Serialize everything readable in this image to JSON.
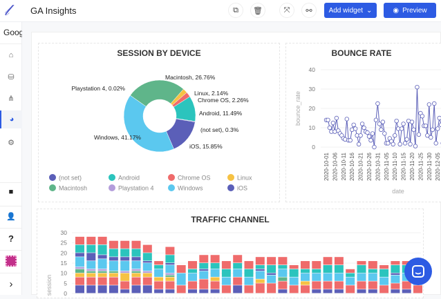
{
  "header": {
    "logo": "𝓁",
    "title": "GA Insights",
    "add_widget": "Add widget",
    "preview": "Preview",
    "icons": [
      "copy-icon",
      "trash-icon",
      "fullscreen-icon",
      "unlink-icon"
    ]
  },
  "sidebar": {
    "workspace": "Goog",
    "items": [
      "home-icon",
      "database-icon",
      "sitemap-icon",
      "pie-chart-icon",
      "gear-icon"
    ],
    "bottom": [
      "chat-icon",
      "user-settings-icon",
      "help-icon",
      "avatar",
      "chevron-right-icon"
    ],
    "help_label": "?",
    "expand_label": "›"
  },
  "chart_data": [
    {
      "type": "pie",
      "title": "SESSION BY DEVICE",
      "donut": true,
      "slices": [
        {
          "label": "(not set)",
          "value": 0.3,
          "color": "#5b5fb8",
          "text": "(not set), 0.3%"
        },
        {
          "label": "Android",
          "value": 11.49,
          "color": "#2bc4bd",
          "text": "Android, 11.49%"
        },
        {
          "label": "Chrome OS",
          "value": 2.26,
          "color": "#ef6b6b",
          "text": "Chrome OS, 2.26%"
        },
        {
          "label": "Linux",
          "value": 2.14,
          "color": "#f6c244",
          "text": "Linux, 2.14%"
        },
        {
          "label": "Macintosh",
          "value": 26.76,
          "color": "#5fb58a",
          "text": "Macintosh, 26.76%"
        },
        {
          "label": "Playstation 4",
          "value": 0.02,
          "color": "#b39ddb",
          "text": "Playstation 4, 0.02%"
        },
        {
          "label": "Windows",
          "value": 41.17,
          "color": "#5bc8ef",
          "text": "Windows, 41.17%"
        },
        {
          "label": "iOS",
          "value": 15.85,
          "color": "#5b5fb8",
          "text": "iOS, 15.85%"
        }
      ],
      "legend": "bottom"
    },
    {
      "type": "line",
      "title": "BOUNCE RATE",
      "xlabel": "date",
      "ylabel": "bounce_rate",
      "ylim": [
        0,
        40
      ],
      "yticks": [
        0,
        10,
        20,
        30,
        40
      ],
      "xstart": "2020-10-01",
      "xticks": [
        "2020-10-01",
        "2020-10-06",
        "2020-10-11",
        "2020-10-16",
        "2020-10-21",
        "2020-10-26",
        "2020-10-31",
        "2020-11-05",
        "2020-11-10",
        "2020-11-15",
        "2020-11-20",
        "2020-11-25",
        "2020-11-30",
        "2020-12-05",
        "2020-12-10"
      ],
      "color": "#5b5fb8",
      "values": [
        14,
        14,
        10,
        8,
        12.5,
        8,
        15,
        8.5,
        7,
        6,
        4.5,
        4,
        14.5,
        3.5,
        3.5,
        9,
        11.5,
        9.5,
        6,
        1.5,
        6,
        12,
        10,
        8,
        7.5,
        5.5,
        3.5,
        7,
        0,
        14,
        22.5,
        12,
        9,
        13,
        7,
        2,
        2,
        4.5,
        3,
        1.5,
        6,
        13.5,
        9.5,
        1.5,
        9.5,
        12,
        2,
        4,
        13.5,
        1.5,
        13,
        9,
        0.5,
        31,
        6.5,
        17.5,
        16,
        11,
        11,
        6,
        22,
        5,
        9,
        22.5,
        2,
        9.5,
        15,
        11.5,
        2,
        1.5,
        10
      ]
    },
    {
      "type": "bar",
      "stacked": true,
      "title": "TRAFFIC CHANNEL",
      "ylabel": "session",
      "ylim": [
        0,
        30
      ],
      "yticks": [
        0,
        5,
        10,
        15,
        20,
        25,
        30
      ],
      "colors": [
        "#5b5fb8",
        "#ef6b6b",
        "#f6c244",
        "#5fb58a",
        "#b39ddb",
        "#5bc8ef",
        "#5b5fb8",
        "#2bc4bd",
        "#ef6b6b"
      ],
      "stacks": [
        [
          4,
          4,
          2,
          2,
          1,
          5,
          2,
          4,
          4
        ],
        [
          4,
          4,
          2,
          1,
          1,
          4,
          4,
          4,
          4
        ],
        [
          4,
          4,
          2,
          1,
          1,
          5,
          2,
          5,
          4
        ],
        [
          4,
          4,
          2,
          1,
          0,
          5,
          2,
          4,
          4
        ],
        [
          2,
          4,
          4,
          0,
          1,
          5,
          2,
          4,
          4
        ],
        [
          4,
          4,
          2,
          1,
          1,
          4,
          2,
          4,
          4
        ],
        [
          4,
          4,
          2,
          0,
          1,
          4,
          1,
          4,
          4
        ],
        [
          2,
          4,
          2,
          0,
          0,
          4,
          0,
          2,
          2
        ],
        [
          2,
          4,
          2,
          1,
          1,
          4,
          1,
          4,
          4
        ],
        [
          0,
          4,
          0,
          0,
          0,
          6,
          0,
          0,
          4
        ],
        [
          2,
          4,
          0,
          0,
          0,
          4,
          0,
          2,
          4
        ],
        [
          2,
          5,
          0,
          0,
          0,
          4,
          1,
          3,
          4
        ],
        [
          2,
          4,
          2,
          0,
          0,
          4,
          0,
          3,
          4
        ],
        [
          0,
          4,
          0,
          0,
          0,
          4,
          0,
          4,
          4
        ],
        [
          4,
          4,
          0,
          0,
          0,
          4,
          0,
          3,
          4
        ],
        [
          0,
          4,
          0,
          0,
          0,
          4,
          0,
          4,
          4
        ],
        [
          0,
          5,
          2,
          0,
          0,
          4,
          1,
          2,
          4
        ],
        [
          0,
          5,
          0,
          0,
          0,
          4,
          1,
          4,
          4
        ],
        [
          2,
          4,
          0,
          2,
          0,
          4,
          0,
          2,
          4
        ],
        [
          0,
          4,
          0,
          0,
          0,
          4,
          0,
          4,
          2
        ],
        [
          0,
          4,
          2,
          0,
          0,
          4,
          0,
          2,
          4
        ],
        [
          2,
          4,
          0,
          0,
          0,
          4,
          0,
          2,
          4
        ],
        [
          2,
          4,
          0,
          0,
          0,
          4,
          0,
          4,
          4
        ],
        [
          2,
          4,
          0,
          0,
          0,
          4,
          0,
          4,
          4
        ],
        [
          0,
          4,
          0,
          0,
          0,
          4,
          0,
          2,
          2
        ],
        [
          2,
          4,
          0,
          0,
          0,
          4,
          0,
          4,
          2
        ],
        [
          2,
          4,
          0,
          0,
          0,
          4,
          0,
          2,
          4
        ],
        [
          0,
          4,
          0,
          0,
          0,
          4,
          0,
          4,
          2
        ],
        [
          2,
          3,
          0,
          0,
          0,
          4,
          1,
          4,
          2
        ],
        [
          2,
          4,
          0,
          0,
          0,
          4,
          0,
          4,
          2
        ],
        [
          0,
          4,
          0,
          0,
          0,
          4,
          0,
          4,
          4
        ]
      ]
    }
  ]
}
